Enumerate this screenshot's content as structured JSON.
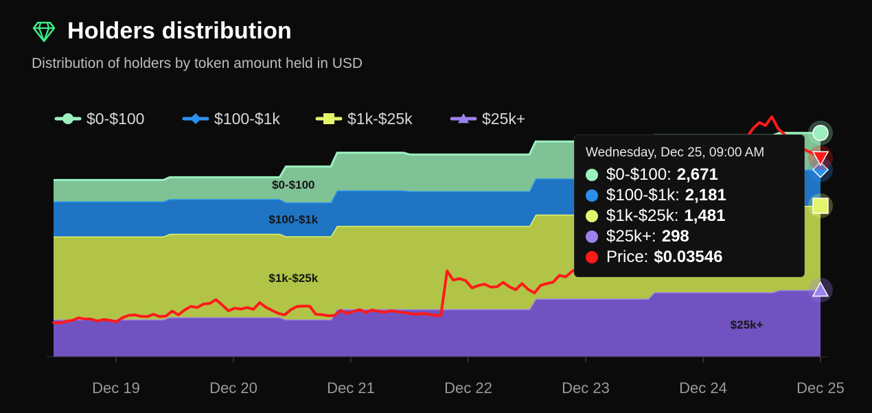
{
  "header": {
    "title": "Holders distribution",
    "subtitle": "Distribution of holders by token amount held in USD"
  },
  "icons": {
    "title_icon": "diamond-gem-icon"
  },
  "colors": {
    "background": "#0b0b0b",
    "band_0_100": "#7ec295",
    "band_100_1k": "#1f74c4",
    "band_1k_25k": "#b2c447",
    "band_25k": "#7053c0",
    "line_0_100": "#9cf0bf",
    "line_100_1k": "#2a90ee",
    "line_1k_25k": "#e4f56c",
    "line_25k": "#9b82ec",
    "price_line": "#ff1a1a"
  },
  "tooltip": {
    "heading": "Wednesday, Dec 25, 09:00 AM",
    "rows": [
      {
        "label": "$0-$100:",
        "value": "2,671",
        "color": "#9cf0bf"
      },
      {
        "label": "$100-$1k:",
        "value": "2,181",
        "color": "#2a90ee"
      },
      {
        "label": "$1k-$25k:",
        "value": "1,481",
        "color": "#e4f56c"
      },
      {
        "label": "$25k+:",
        "value": "298",
        "color": "#9b82ec"
      },
      {
        "label": "Price:",
        "value": "$0.03546",
        "color": "#ff1a1a"
      }
    ]
  },
  "chart_data": {
    "type": "area",
    "stacked": true,
    "x_ticks": [
      "Dec 19",
      "Dec 20",
      "Dec 21",
      "Dec 22",
      "Dec 23",
      "Dec 24",
      "Dec 25"
    ],
    "x": [
      0,
      0.88,
      0.93,
      1.81,
      1.86,
      2.22,
      2.27,
      2.8,
      2.85,
      3.81,
      3.86,
      4.76,
      4.81,
      5.76,
      5.81,
      6.14
    ],
    "series": [
      {
        "name": "$25k+",
        "values": [
          272,
          272,
          288,
          288,
          272,
          272,
          347,
          347,
          347,
          347,
          423,
          423,
          470,
          470,
          486,
          486
        ]
      },
      {
        "name": "$1k-$25k",
        "values": [
          605,
          605,
          608,
          608,
          606,
          606,
          607,
          607,
          606,
          606,
          613,
          613,
          615,
          615,
          614,
          614
        ]
      },
      {
        "name": "$100-$1k",
        "values": [
          255,
          255,
          253,
          253,
          247,
          247,
          258,
          258,
          254,
          254,
          263,
          263,
          262,
          262,
          263,
          263
        ]
      },
      {
        "name": "$0-$100",
        "values": [
          156,
          156,
          159,
          159,
          261,
          261,
          275,
          275,
          267,
          267,
          270,
          270,
          267,
          267,
          268,
          268
        ]
      }
    ],
    "y_range": [
      0,
      1920
    ],
    "band_labels": [
      {
        "text": "$0-$100",
        "series": "$0-$100"
      },
      {
        "text": "$100-$1k",
        "series": "$100-$1k"
      },
      {
        "text": "$1k-$25k",
        "series": "$1k-$25k"
      },
      {
        "text": "$25k+",
        "series": "$25k+"
      }
    ],
    "price_series": {
      "name": "Price",
      "x": [
        0,
        0.05,
        0.1,
        0.15,
        0.2,
        0.25,
        0.3,
        0.35,
        0.4,
        0.45,
        0.5,
        0.55,
        0.6,
        0.65,
        0.7,
        0.75,
        0.8,
        0.85,
        0.9,
        0.95,
        1.0,
        1.05,
        1.1,
        1.15,
        1.2,
        1.25,
        1.3,
        1.35,
        1.4,
        1.45,
        1.5,
        1.55,
        1.6,
        1.65,
        1.7,
        1.75,
        1.8,
        1.85,
        1.9,
        1.95,
        2.0,
        2.05,
        2.1,
        2.15,
        2.2,
        2.25,
        2.3,
        2.35,
        2.4,
        2.45,
        2.5,
        2.55,
        2.6,
        2.65,
        2.7,
        2.75,
        2.8,
        2.85,
        2.9,
        2.95,
        3.0,
        3.05,
        3.1,
        3.15,
        3.2,
        3.25,
        3.3,
        3.35,
        3.4,
        3.45,
        3.5,
        3.55,
        3.6,
        3.65,
        3.7,
        3.75,
        3.8,
        3.85,
        3.9,
        3.95,
        4.0,
        4.05,
        4.1,
        4.15,
        4.2,
        4.25,
        4.3,
        4.35,
        4.4,
        4.45,
        4.5,
        4.55,
        4.6,
        4.65,
        4.7,
        4.75,
        4.8,
        4.85,
        4.9,
        4.95,
        5.0,
        5.05,
        5.1,
        5.15,
        5.2,
        5.25,
        5.3,
        5.35,
        5.4,
        5.45,
        5.5,
        5.55,
        5.6,
        5.65,
        5.7,
        5.75,
        5.8,
        5.85,
        5.9,
        5.95,
        6.0,
        6.05,
        6.1,
        6.14
      ],
      "values": [
        0.0117,
        0.0115,
        0.0121,
        0.0124,
        0.0133,
        0.0129,
        0.0129,
        0.0122,
        0.0127,
        0.0125,
        0.0119,
        0.0133,
        0.0141,
        0.0143,
        0.0138,
        0.0137,
        0.0145,
        0.0137,
        0.0139,
        0.0156,
        0.0143,
        0.016,
        0.0172,
        0.0168,
        0.018,
        0.0182,
        0.0195,
        0.0177,
        0.0157,
        0.0166,
        0.0163,
        0.0168,
        0.0162,
        0.0185,
        0.0169,
        0.0158,
        0.0148,
        0.0143,
        0.0161,
        0.0172,
        0.0173,
        0.0173,
        0.0145,
        0.0144,
        0.014,
        0.0141,
        0.0158,
        0.0148,
        0.0155,
        0.0161,
        0.0151,
        0.016,
        0.0155,
        0.0152,
        0.0157,
        0.0154,
        0.0151,
        0.0148,
        0.0145,
        0.0148,
        0.0145,
        0.0142,
        0.014,
        0.0293,
        0.0262,
        0.0267,
        0.026,
        0.0235,
        0.0243,
        0.0248,
        0.0238,
        0.0239,
        0.0254,
        0.0239,
        0.0229,
        0.025,
        0.023,
        0.0218,
        0.0244,
        0.025,
        0.0255,
        0.0278,
        0.0273,
        0.0291,
        0.0305,
        0.0333,
        0.035,
        0.0339,
        0.0368,
        0.0352,
        0.033,
        0.0375,
        0.0395,
        0.042,
        0.04,
        0.044,
        0.048,
        0.045,
        0.051,
        0.053,
        0.06,
        0.062,
        0.065,
        0.07,
        0.064,
        0.068,
        0.072,
        0.069,
        0.071,
        0.07,
        0.072,
        0.075,
        0.078,
        0.08,
        0.079,
        0.082,
        0.078,
        0.076,
        0.074,
        0.072,
        0.071,
        0.07,
        0.069,
        0.068
      ],
      "range": [
        0,
        0.09
      ]
    },
    "legend": {
      "placement": "top-left",
      "items": [
        {
          "label": "$0-$100",
          "color": "#9cf0bf",
          "marker": "circle"
        },
        {
          "label": "$100-$1k",
          "color": "#2a90ee",
          "marker": "diamond"
        },
        {
          "label": "$1k-$25k",
          "color": "#e4f56c",
          "marker": "square"
        },
        {
          "label": "$25k+",
          "color": "#9b82ec",
          "marker": "triangle"
        }
      ]
    },
    "edge_markers": [
      {
        "series": "$0-$100",
        "shape": "circle",
        "color": "#9cf0bf"
      },
      {
        "series": "$100-$1k",
        "shape": "diamond",
        "color": "#2a90ee"
      },
      {
        "series": "$1k-$25k",
        "shape": "square",
        "color": "#e4f56c"
      },
      {
        "series": "Price",
        "shape": "triangle-down",
        "color": "#ff1a1a"
      },
      {
        "series": "$25k+",
        "shape": "triangle",
        "color": "#9b82ec"
      }
    ],
    "grid": false
  }
}
